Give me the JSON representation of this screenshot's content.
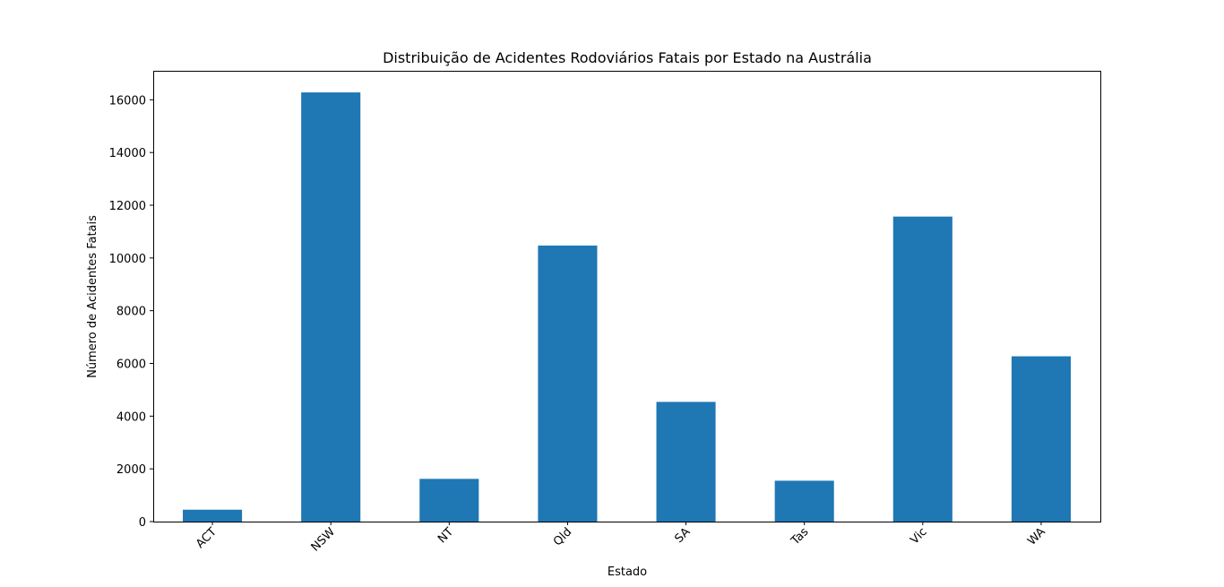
{
  "chart_data": {
    "type": "bar",
    "title": "Distribuição de Acidentes Rodoviários Fatais por Estado na Austrália",
    "xlabel": "Estado",
    "ylabel": "Número de Acidentes Fatais",
    "categories": [
      "ACT",
      "NSW",
      "NT",
      "Qld",
      "SA",
      "Tas",
      "Vic",
      "WA"
    ],
    "values": [
      450,
      16280,
      1620,
      10470,
      4540,
      1550,
      11570,
      6270
    ],
    "ylim": [
      0,
      17100
    ],
    "yticks": [
      0,
      2000,
      4000,
      6000,
      8000,
      10000,
      12000,
      14000,
      16000
    ],
    "ytick_labels": [
      "0",
      "2000",
      "4000",
      "6000",
      "8000",
      "10000",
      "12000",
      "14000",
      "16000"
    ],
    "bar_color": "#1f77b4",
    "grid": false,
    "legend": "none"
  }
}
